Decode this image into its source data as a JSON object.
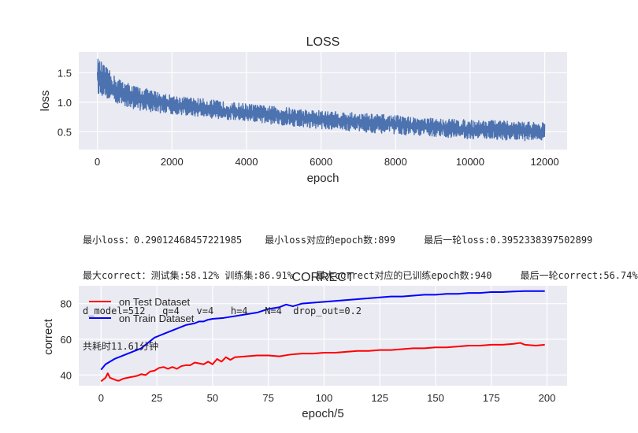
{
  "chart_data": [
    {
      "type": "line",
      "title": "LOSS",
      "xlabel": "epoch",
      "ylabel": "loss",
      "xlim": [
        -500,
        12600
      ],
      "ylim": [
        0.2,
        1.85
      ],
      "xticks": [
        0,
        2000,
        4000,
        6000,
        8000,
        10000,
        12000
      ],
      "yticks": [
        0.5,
        1.0,
        1.5
      ],
      "xtick_labels": [
        "0",
        "2000",
        "4000",
        "6000",
        "8000",
        "10000",
        "12000"
      ],
      "ytick_labels": [
        "0.5",
        "1.0",
        "1.5"
      ],
      "grid": true,
      "series": [
        {
          "color": "#4c72b0",
          "x": [
            0,
            500,
            1000,
            1500,
            2000,
            2500,
            3000,
            3500,
            4000,
            4500,
            5000,
            5500,
            6000,
            6500,
            7000,
            7500,
            8000,
            8500,
            9000,
            9500,
            10000,
            10500,
            11000,
            11500,
            12000
          ],
          "upper": [
            1.75,
            1.42,
            1.28,
            1.2,
            1.12,
            1.08,
            1.05,
            1.0,
            0.98,
            0.94,
            0.92,
            0.88,
            0.86,
            0.84,
            0.82,
            0.8,
            0.78,
            0.75,
            0.73,
            0.72,
            0.7,
            0.7,
            0.68,
            0.67,
            0.66
          ],
          "lower": [
            1.15,
            0.98,
            0.88,
            0.83,
            0.8,
            0.77,
            0.73,
            0.7,
            0.66,
            0.64,
            0.61,
            0.58,
            0.55,
            0.53,
            0.5,
            0.48,
            0.46,
            0.44,
            0.42,
            0.4,
            0.38,
            0.38,
            0.36,
            0.35,
            0.35
          ]
        }
      ]
    },
    {
      "type": "line",
      "title": "CORRECT",
      "xlabel": "epoch/5",
      "ylabel": "correct",
      "xlim": [
        -10,
        209
      ],
      "ylim": [
        34,
        90
      ],
      "xticks": [
        0,
        25,
        50,
        75,
        100,
        125,
        150,
        175,
        200
      ],
      "yticks": [
        40,
        60,
        80
      ],
      "xtick_labels": [
        "0",
        "25",
        "50",
        "75",
        "100",
        "125",
        "150",
        "175",
        "200"
      ],
      "ytick_labels": [
        "40",
        "60",
        "80"
      ],
      "grid": true,
      "legend_position": "top-left",
      "series": [
        {
          "name": "on Test Dataset",
          "color": "#ff0000",
          "x": [
            0,
            2,
            3,
            4,
            5,
            6,
            7,
            8,
            10,
            12,
            14,
            16,
            18,
            20,
            22,
            24,
            26,
            28,
            30,
            32,
            34,
            36,
            38,
            40,
            42,
            44,
            46,
            48,
            50,
            52,
            54,
            56,
            58,
            60,
            65,
            70,
            75,
            80,
            85,
            90,
            95,
            100,
            105,
            110,
            115,
            120,
            125,
            130,
            135,
            140,
            145,
            150,
            155,
            160,
            165,
            170,
            175,
            180,
            185,
            188,
            190,
            195,
            199
          ],
          "y": [
            36.5,
            38.5,
            41,
            38.5,
            38,
            37.5,
            37,
            36.8,
            38,
            38.5,
            39,
            39.5,
            40.5,
            40,
            42,
            42.5,
            44,
            44.5,
            43.5,
            44.5,
            43.5,
            45,
            45.5,
            45.5,
            47,
            46.5,
            46,
            47.5,
            46,
            49,
            47.5,
            50,
            48.5,
            50,
            50.5,
            51,
            51,
            50.5,
            51.5,
            52,
            52,
            52.5,
            52.5,
            53,
            53.5,
            53.5,
            54,
            54,
            54.5,
            55,
            55,
            55.5,
            55.5,
            56,
            56.5,
            56.5,
            57,
            57,
            57.5,
            58,
            57,
            56.5,
            57
          ]
        },
        {
          "name": "on Train Dataset",
          "color": "#0000ff",
          "x": [
            0,
            2,
            4,
            6,
            8,
            10,
            12,
            14,
            16,
            18,
            20,
            22,
            24,
            26,
            28,
            30,
            32,
            34,
            36,
            38,
            40,
            42,
            44,
            46,
            48,
            50,
            55,
            60,
            65,
            70,
            75,
            80,
            83,
            86,
            90,
            95,
            100,
            105,
            110,
            115,
            120,
            125,
            130,
            135,
            140,
            145,
            150,
            155,
            160,
            165,
            170,
            175,
            180,
            185,
            190,
            195,
            199
          ],
          "y": [
            43,
            46,
            47.5,
            49,
            50,
            51,
            52,
            53,
            54,
            55,
            57,
            59,
            61,
            62,
            63,
            64,
            65,
            66,
            67,
            68,
            68.5,
            69,
            70,
            70,
            71,
            71.5,
            72,
            73,
            74,
            75,
            77,
            78,
            79.5,
            78.5,
            80,
            80.5,
            81,
            81.5,
            82,
            82.5,
            83,
            83.5,
            84,
            84,
            84.5,
            85,
            85,
            85.5,
            85.5,
            86,
            86,
            86.5,
            86.5,
            86.8,
            87,
            87,
            87
          ]
        }
      ]
    }
  ],
  "stats": {
    "line1": "最小loss：0.29012468457221985    最小loss对应的epoch数:899     最后一轮loss:0.3952338397502899",
    "line2": "最大correct：测试集:58.12% 训练集:86.91%    最大correct对应的已训练epoch数:940     最后一轮correct:56.74%",
    "line3": "d_model=512   q=4   v=4   h=4   N=4  drop_out=0.2",
    "line4": "共耗时11.61分钟"
  }
}
